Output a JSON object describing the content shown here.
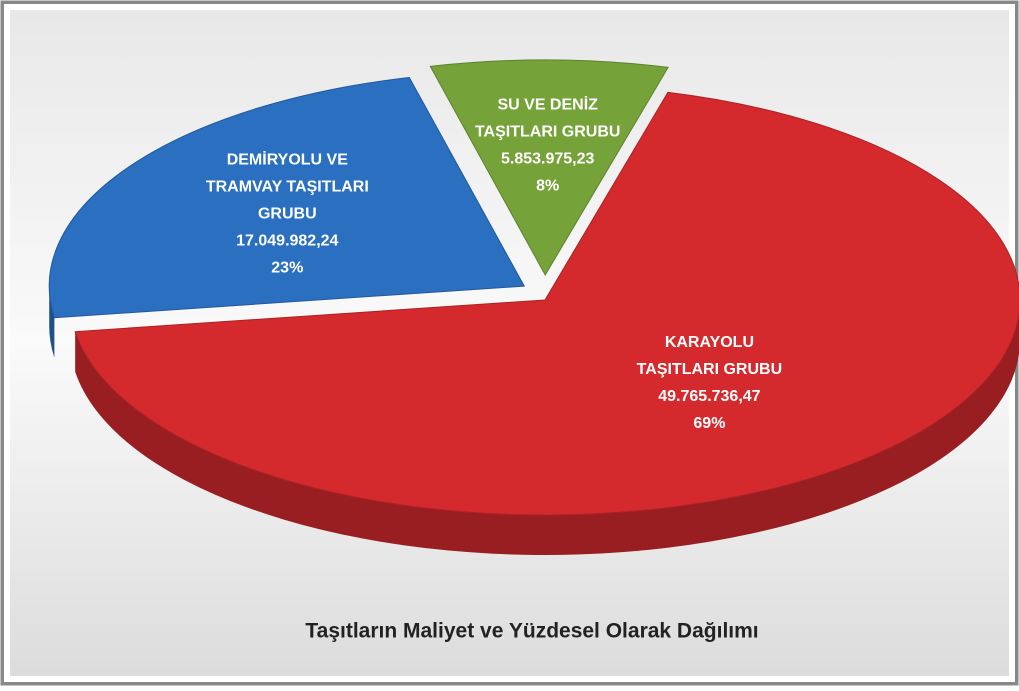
{
  "chart_data": {
    "type": "pie",
    "title": "Taşıtların Maliyet ve Yüzdesel Olarak Dağılımı",
    "categories": [
      [
        "KARAYOLU",
        "TAŞITLARI GRUBU"
      ],
      [
        "DEMİRYOLU VE",
        "TRAMVAY TAŞITLARI",
        "GRUBU"
      ],
      [
        "SU VE DENİZ",
        "TAŞITLARI GRUBU"
      ]
    ],
    "values": [
      49765736.47,
      17049982.24,
      5853975.23
    ],
    "value_labels": [
      "49.765.736,47",
      "17.049.982,24",
      "5.853.975,23"
    ],
    "percentages": [
      69,
      23,
      8
    ],
    "percentage_labels": [
      "69%",
      "23%",
      "8%"
    ],
    "colors": [
      "#d42a2e",
      "#2a6fc0",
      "#76a23a"
    ]
  }
}
